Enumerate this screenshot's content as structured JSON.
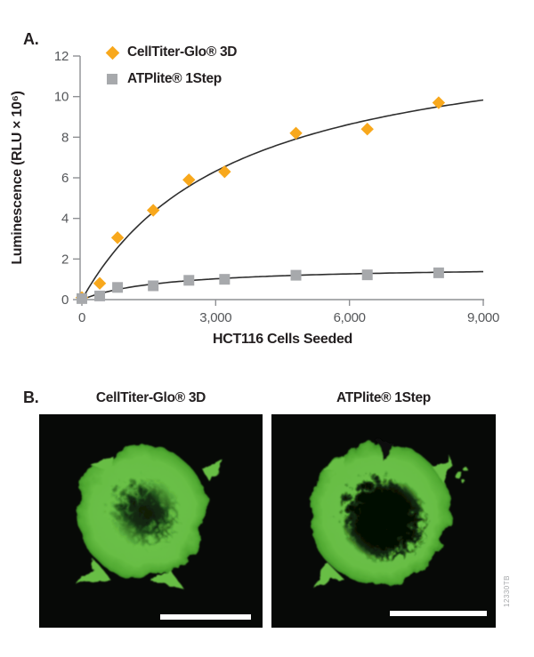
{
  "panel_a": {
    "label": "A."
  },
  "chart_data": {
    "type": "scatter",
    "title": "",
    "xlabel": "HCT116 Cells Seeded",
    "ylabel": "Luminescence (RLU × 10⁶)",
    "xlim": [
      0,
      9000
    ],
    "ylim": [
      0,
      12
    ],
    "grid": false,
    "legend_position": "top-left-inside",
    "xticks": {
      "values": [
        0,
        3000,
        6000,
        9000
      ],
      "labels": [
        "0",
        "3,000",
        "6,000",
        "9,000"
      ]
    },
    "yticks": {
      "values": [
        0,
        2,
        4,
        6,
        8,
        10,
        12
      ],
      "labels": [
        "0",
        "2",
        "4",
        "6",
        "8",
        "10",
        "12"
      ]
    },
    "axis_color": "#8e9093",
    "curve_color": "#2e2e2e",
    "tick_label_color": "#55575a",
    "series": [
      {
        "name": "CellTiter-Glo® 3D",
        "marker": "diamond",
        "color": "#f8a81c",
        "points": [
          [
            0,
            0.1
          ],
          [
            400,
            0.8
          ],
          [
            800,
            3.05
          ],
          [
            1600,
            4.4
          ],
          [
            2400,
            5.9
          ],
          [
            3200,
            6.3
          ],
          [
            4800,
            8.2
          ],
          [
            6400,
            8.4
          ],
          [
            8000,
            9.7
          ]
        ],
        "fit": {
          "model": "michaelis-menten",
          "vmax": 13.6,
          "km": 3450
        }
      },
      {
        "name": "ATPlite® 1Step",
        "marker": "square",
        "color": "#a7a9ac",
        "points": [
          [
            0,
            0.05
          ],
          [
            400,
            0.18
          ],
          [
            800,
            0.6
          ],
          [
            1600,
            0.68
          ],
          [
            2400,
            0.95
          ],
          [
            3200,
            1.0
          ],
          [
            4800,
            1.2
          ],
          [
            6400,
            1.22
          ],
          [
            8000,
            1.32
          ]
        ],
        "fit": {
          "model": "michaelis-menten",
          "vmax": 1.66,
          "km": 1860
        }
      }
    ]
  },
  "panel_b": {
    "label": "B.",
    "images": [
      {
        "title": "CellTiter-Glo® 3D"
      },
      {
        "title": "ATPlite® 1Step"
      }
    ],
    "side_code": "12330TB"
  }
}
